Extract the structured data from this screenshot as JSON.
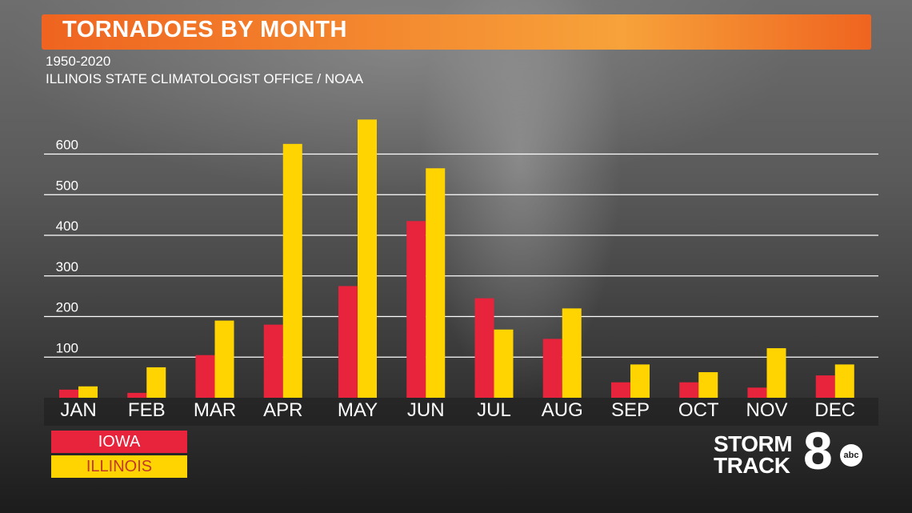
{
  "header": {
    "title": "TORNADOES BY MONTH",
    "subtitle_years": "1950-2020",
    "subtitle_source": "ILLINOIS STATE CLIMATOLOGIST OFFICE / NOAA"
  },
  "colors": {
    "banner_start": "#ef6420",
    "banner_end": "#f7a23a",
    "iowa": "#e8243c",
    "illinois": "#ffd400",
    "gridline": "#ffffff",
    "text": "#ffffff"
  },
  "legend": {
    "iowa_label": "IOWA",
    "illinois_label": "ILLINOIS"
  },
  "logo": {
    "line1": "STORM",
    "line2": "TRACK",
    "number": "8",
    "network": "abc"
  },
  "chart_data": {
    "type": "bar",
    "title": "TORNADOES BY MONTH",
    "categories": [
      "JAN",
      "FEB",
      "MAR",
      "APR",
      "MAY",
      "JUN",
      "JUL",
      "AUG",
      "SEP",
      "OCT",
      "NOV",
      "DEC"
    ],
    "series": [
      {
        "name": "IOWA",
        "color": "#e8243c",
        "values": [
          20,
          12,
          105,
          180,
          275,
          435,
          245,
          145,
          38,
          38,
          25,
          55
        ]
      },
      {
        "name": "ILLINOIS",
        "color": "#ffd400",
        "values": [
          28,
          75,
          190,
          625,
          685,
          565,
          168,
          220,
          82,
          63,
          122,
          82
        ]
      }
    ],
    "yticks": [
      100,
      200,
      300,
      400,
      500,
      600
    ],
    "ylim": [
      0,
      700
    ],
    "xlabel": "",
    "ylabel": "",
    "grid": true,
    "legend_position": "bottom-left"
  }
}
